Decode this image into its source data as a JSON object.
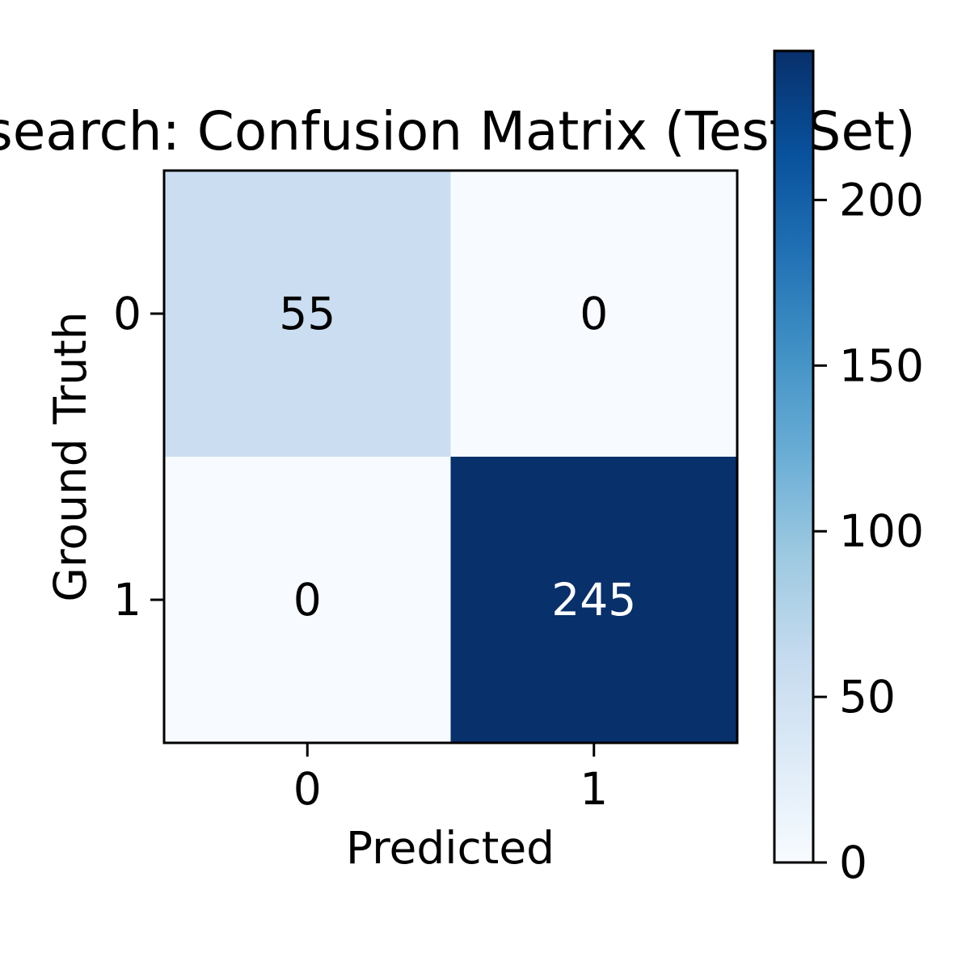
{
  "chart_data": {
    "type": "heatmap",
    "title": "search: Confusion Matrix (Test Set)",
    "xlabel": "Predicted",
    "ylabel": "Ground Truth",
    "x_categories": [
      "0",
      "1"
    ],
    "y_categories": [
      "0",
      "1"
    ],
    "values": [
      [
        55,
        0
      ],
      [
        0,
        245
      ]
    ],
    "colormap": "Blues",
    "colormap_stops": [
      "#f7fbff",
      "#deebf7",
      "#c6dbef",
      "#9ecae1",
      "#6baed6",
      "#4292c6",
      "#2171b5",
      "#08519c",
      "#08306b"
    ],
    "colorbar": {
      "range": [
        0,
        245
      ],
      "ticks": [
        0,
        50,
        100,
        150,
        200
      ],
      "tick_labels": [
        "0",
        "50",
        "100",
        "150",
        "200"
      ]
    },
    "annotation_colors": {
      "light": "#000000",
      "dark": "#ffffff"
    }
  }
}
